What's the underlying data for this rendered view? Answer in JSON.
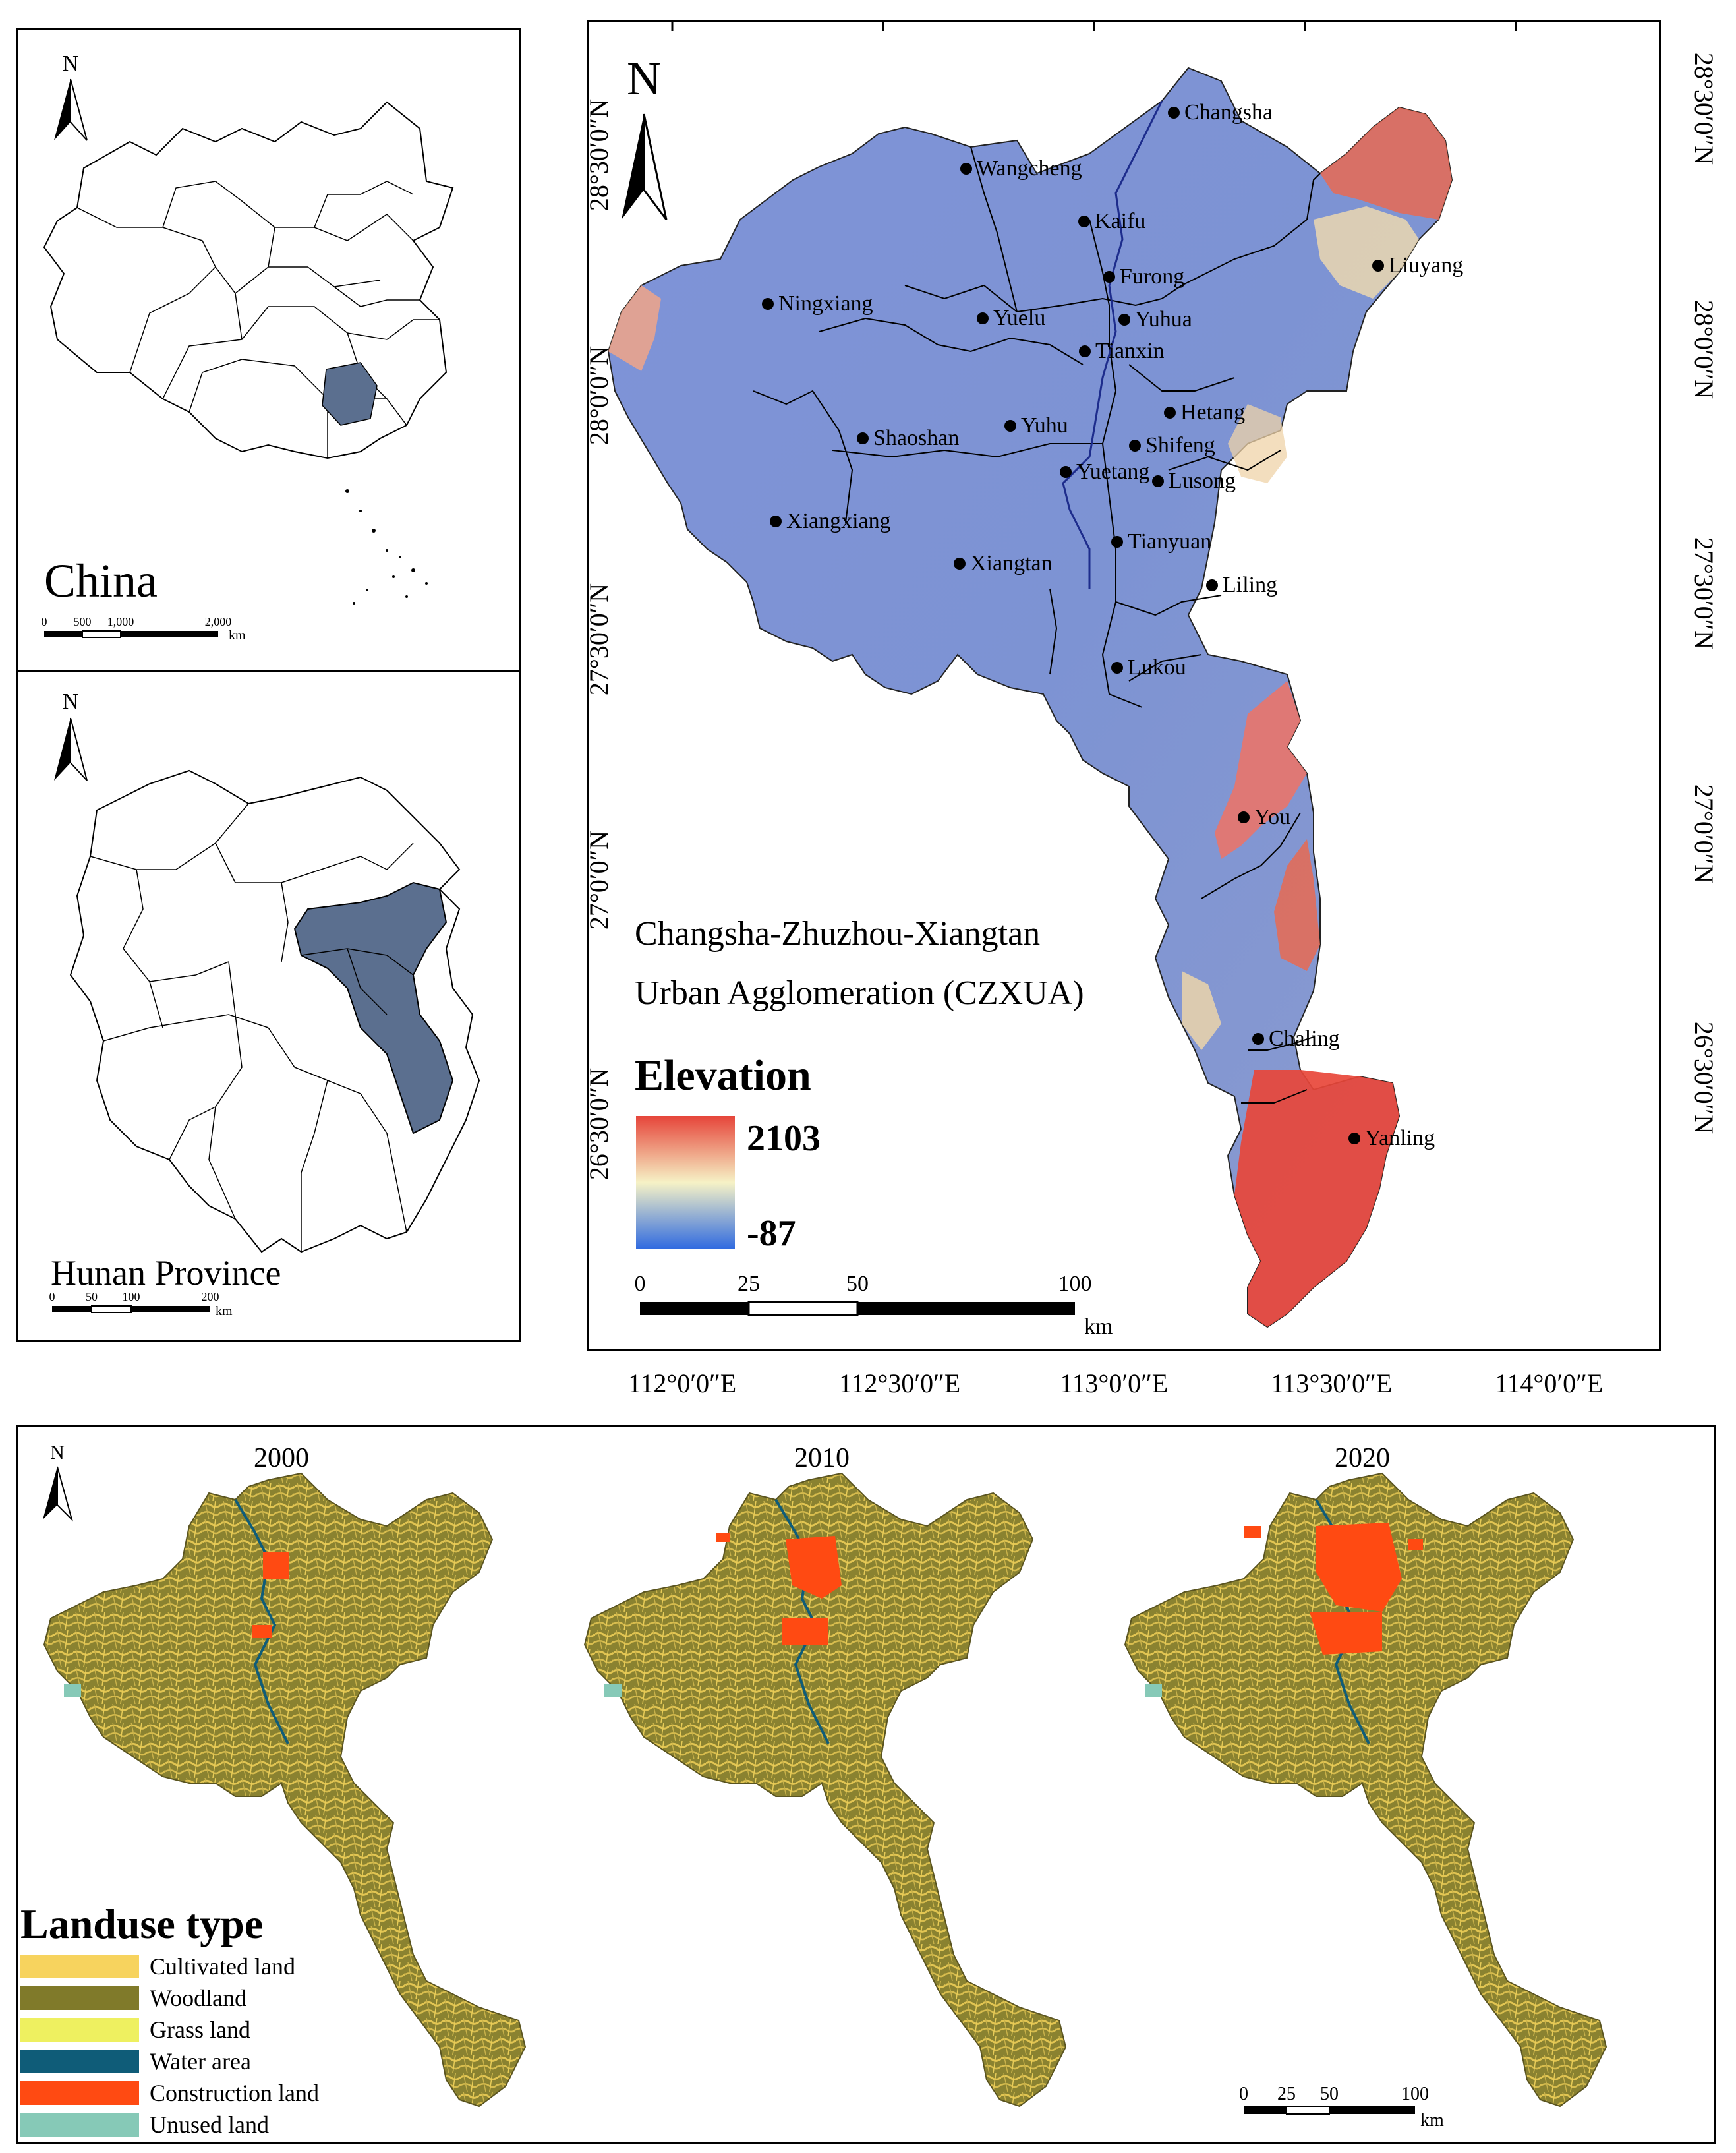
{
  "china_inset": {
    "north": "N",
    "title": "China",
    "scale_ticks": [
      "0",
      "500",
      "1,000",
      "2,000"
    ],
    "scale_unit": "km"
  },
  "hunan_inset": {
    "north": "N",
    "title": "Hunan Province",
    "scale_ticks": [
      "0",
      "50",
      "100",
      "200"
    ],
    "scale_unit": "km"
  },
  "main_map": {
    "north": "N",
    "title_line1": "Changsha-Zhuzhou-Xiangtan",
    "title_line2": "Urban Agglomeration (CZXUA)",
    "legend_title": "Elevation",
    "elev_max": "2103",
    "elev_min": "-87",
    "scale_ticks": [
      "0",
      "25",
      "50",
      "100"
    ],
    "scale_unit": "km",
    "lat_labels": [
      "28°30′0″N",
      "28°0′0″N",
      "27°30′0″N",
      "27°0′0″N",
      "26°30′0″N"
    ],
    "lon_labels": [
      "112°0′0″E",
      "112°30′0″E",
      "113°0′0″E",
      "113°30′0″E",
      "114°0′0″E"
    ],
    "places": [
      {
        "name": "Changsha"
      },
      {
        "name": "Wangcheng"
      },
      {
        "name": "Kaifu"
      },
      {
        "name": "Furong"
      },
      {
        "name": "Liuyang"
      },
      {
        "name": "Ningxiang"
      },
      {
        "name": "Yuelu"
      },
      {
        "name": "Yuhua"
      },
      {
        "name": "Tianxin"
      },
      {
        "name": "Hetang"
      },
      {
        "name": "Shaoshan"
      },
      {
        "name": "Yuhu"
      },
      {
        "name": "Shifeng"
      },
      {
        "name": "Yuetang"
      },
      {
        "name": "Lusong"
      },
      {
        "name": "Xiangxiang"
      },
      {
        "name": "Tianyuan"
      },
      {
        "name": "Xiangtan"
      },
      {
        "name": "Liling"
      },
      {
        "name": "Lukou"
      },
      {
        "name": "You"
      },
      {
        "name": "Chaling"
      },
      {
        "name": "Yanling"
      }
    ]
  },
  "landuse": {
    "north": "N",
    "years": [
      "2000",
      "2010",
      "2020"
    ],
    "legend_title": "Landuse type",
    "classes": [
      {
        "label": "Cultivated land",
        "color": "#f7d35e"
      },
      {
        "label": "Woodland",
        "color": "#807a2a"
      },
      {
        "label": "Grass land",
        "color": "#eef060"
      },
      {
        "label": "Water area",
        "color": "#0f5c78"
      },
      {
        "label": "Construction land",
        "color": "#ff4a12"
      },
      {
        "label": "Unused land",
        "color": "#86c9b7"
      }
    ],
    "scale_ticks": [
      "0",
      "25",
      "50",
      "100"
    ],
    "scale_unit": "km"
  },
  "colors": {
    "elev_low": "#3f64e0",
    "elev_mid": "#f7f0c0",
    "elev_high": "#e83a2a",
    "hunan_fill": "#5b6f8f",
    "china_hunan_fill": "#5b6f8f"
  }
}
